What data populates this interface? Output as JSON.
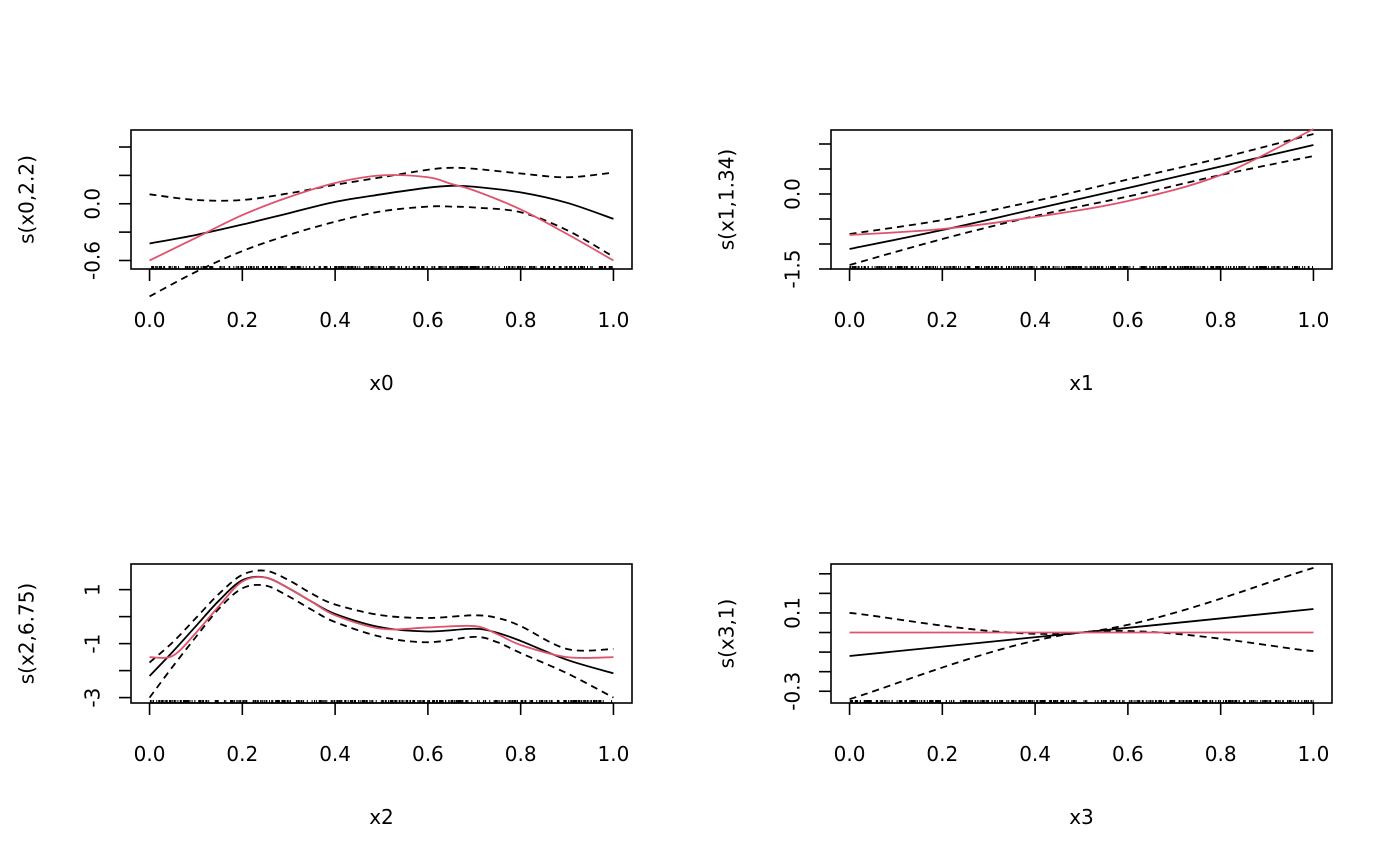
{
  "colors": {
    "fit": "#000000",
    "ci": "#000000",
    "truth": "#DF536B",
    "rug": "#000000"
  },
  "chart_data": [
    {
      "type": "line",
      "title": "",
      "xlabel": "x0",
      "ylabel": "s(x0,2.2)",
      "xlim": [
        -0.04,
        1.04
      ],
      "ylim": [
        -0.69,
        0.78
      ],
      "xticks": [
        0.0,
        0.2,
        0.4,
        0.6,
        0.8,
        1.0
      ],
      "xtick_labels": [
        "0.0",
        "0.2",
        "0.4",
        "0.6",
        "0.8",
        "1.0"
      ],
      "yticks": [
        -0.6,
        -0.3,
        0.0,
        0.3,
        0.6
      ],
      "ytick_labels": [
        "-0.6",
        "",
        "0.0",
        "",
        ""
      ],
      "x": [
        0.0,
        0.1,
        0.2,
        0.3,
        0.4,
        0.5,
        0.6,
        0.65,
        0.7,
        0.8,
        0.9,
        1.0
      ],
      "series": [
        {
          "name": "fit",
          "style": "solid",
          "values": [
            -0.42,
            -0.33,
            -0.22,
            -0.1,
            0.02,
            0.1,
            0.17,
            0.19,
            0.18,
            0.12,
            0.01,
            -0.16
          ]
        },
        {
          "name": "upper",
          "style": "dashed",
          "values": [
            0.1,
            0.04,
            0.04,
            0.11,
            0.2,
            0.28,
            0.36,
            0.38,
            0.37,
            0.32,
            0.28,
            0.33
          ]
        },
        {
          "name": "lower",
          "style": "dashed",
          "values": [
            -0.98,
            -0.72,
            -0.5,
            -0.33,
            -0.19,
            -0.08,
            -0.03,
            -0.03,
            -0.04,
            -0.09,
            -0.28,
            -0.56
          ]
        },
        {
          "name": "truth",
          "style": "red",
          "values": [
            -0.6,
            -0.36,
            -0.12,
            0.07,
            0.22,
            0.3,
            0.28,
            0.21,
            0.14,
            -0.06,
            -0.32,
            -0.6
          ]
        }
      ],
      "rug": true
    },
    {
      "type": "line",
      "title": "",
      "xlabel": "x1",
      "ylabel": "s(x1,1.34)",
      "xlim": [
        -0.04,
        1.04
      ],
      "ylim": [
        -1.5,
        1.28
      ],
      "xticks": [
        0.0,
        0.2,
        0.4,
        0.6,
        0.8,
        1.0
      ],
      "xtick_labels": [
        "0.0",
        "0.2",
        "0.4",
        "0.6",
        "0.8",
        "1.0"
      ],
      "yticks": [
        -1.5,
        -1.0,
        -0.5,
        0.0,
        0.5,
        1.0
      ],
      "ytick_labels": [
        "-1.5",
        "",
        "",
        "0.0",
        "",
        ""
      ],
      "x": [
        0.0,
        0.2,
        0.4,
        0.6,
        0.8,
        1.0
      ],
      "series": [
        {
          "name": "fit",
          "style": "solid",
          "values": [
            -1.1,
            -0.72,
            -0.3,
            0.12,
            0.55,
            0.98
          ]
        },
        {
          "name": "upper",
          "style": "dashed",
          "values": [
            -0.8,
            -0.52,
            -0.14,
            0.29,
            0.72,
            1.2
          ]
        },
        {
          "name": "lower",
          "style": "dashed",
          "values": [
            -1.42,
            -0.9,
            -0.44,
            -0.05,
            0.38,
            0.76
          ]
        },
        {
          "name": "truth",
          "style": "red",
          "values": [
            -0.82,
            -0.7,
            -0.46,
            -0.14,
            0.38,
            1.3
          ]
        }
      ],
      "rug": true
    },
    {
      "type": "line",
      "title": "",
      "xlabel": "x2",
      "ylabel": "s(x2,6.75)",
      "xlim": [
        -0.04,
        1.04
      ],
      "ylim": [
        -3.2,
        1.95
      ],
      "xticks": [
        0.0,
        0.2,
        0.4,
        0.6,
        0.8,
        1.0
      ],
      "xtick_labels": [
        "0.0",
        "0.2",
        "0.4",
        "0.6",
        "0.8",
        "1.0"
      ],
      "yticks": [
        -3,
        -2,
        -1,
        0,
        1
      ],
      "ytick_labels": [
        "-3",
        "",
        "-1",
        "",
        "1"
      ],
      "x": [
        0.0,
        0.05,
        0.1,
        0.15,
        0.2,
        0.25,
        0.3,
        0.35,
        0.4,
        0.5,
        0.6,
        0.7,
        0.75,
        0.8,
        0.9,
        1.0
      ],
      "series": [
        {
          "name": "fit",
          "style": "solid",
          "values": [
            -2.2,
            -1.3,
            -0.35,
            0.6,
            1.35,
            1.45,
            1.05,
            0.55,
            0.1,
            -0.4,
            -0.55,
            -0.45,
            -0.6,
            -0.9,
            -1.6,
            -2.1
          ]
        },
        {
          "name": "upper",
          "style": "dashed",
          "values": [
            -1.7,
            -0.95,
            -0.05,
            0.85,
            1.55,
            1.7,
            1.35,
            0.85,
            0.45,
            0.05,
            -0.05,
            0.05,
            -0.05,
            -0.35,
            -1.2,
            -1.2
          ]
        },
        {
          "name": "lower",
          "style": "dashed",
          "values": [
            -3.0,
            -1.85,
            -0.75,
            0.3,
            1.05,
            1.15,
            0.75,
            0.25,
            -0.2,
            -0.75,
            -0.95,
            -0.75,
            -0.95,
            -1.35,
            -2.1,
            -3.0
          ]
        },
        {
          "name": "truth",
          "style": "red",
          "values": [
            -1.5,
            -1.45,
            -0.6,
            0.4,
            1.3,
            1.45,
            1.05,
            0.55,
            0.05,
            -0.45,
            -0.4,
            -0.35,
            -0.65,
            -1.05,
            -1.5,
            -1.5
          ]
        }
      ],
      "rug": true
    },
    {
      "type": "line",
      "title": "",
      "xlabel": "x3",
      "ylabel": "s(x3,1)",
      "xlim": [
        -0.04,
        1.04
      ],
      "ylim": [
        -0.36,
        0.35
      ],
      "xticks": [
        0.0,
        0.2,
        0.4,
        0.6,
        0.8,
        1.0
      ],
      "xtick_labels": [
        "0.0",
        "0.2",
        "0.4",
        "0.6",
        "0.8",
        "1.0"
      ],
      "yticks": [
        -0.3,
        -0.2,
        -0.1,
        0.0,
        0.1,
        0.2,
        0.3
      ],
      "ytick_labels": [
        "-0.3",
        "",
        "",
        "",
        "0.1",
        "",
        ""
      ],
      "x": [
        0.0,
        0.5,
        1.0
      ],
      "series": [
        {
          "name": "fit",
          "style": "solid",
          "values": [
            -0.12,
            0.0,
            0.12
          ]
        },
        {
          "name": "upper",
          "style": "dashed",
          "values": [
            0.1,
            0.0,
            0.33
          ]
        },
        {
          "name": "lower",
          "style": "dashed",
          "values": [
            -0.34,
            0.0,
            -0.095
          ]
        },
        {
          "name": "truth",
          "style": "red",
          "values": [
            0.0,
            0.0,
            0.0
          ]
        }
      ],
      "rug": true
    }
  ]
}
